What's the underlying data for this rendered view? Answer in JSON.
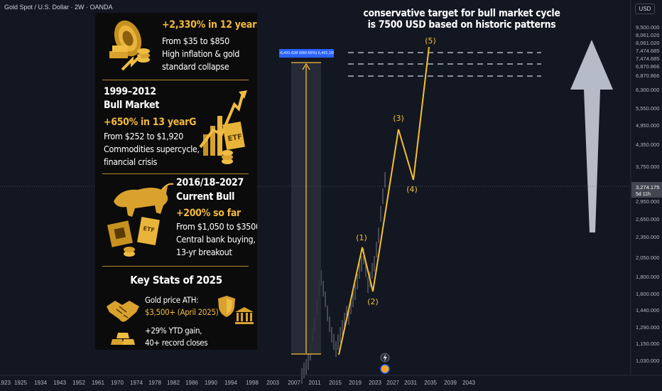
{
  "header": {
    "symbol_title": "Gold Spot / U.S. Dollar · 2W · OANDA",
    "currency_button": "USD"
  },
  "annotation": {
    "line1": "conservative target for bull market cycle",
    "line2": "is 7500 USD based on historic patterns"
  },
  "measure_label": "-6,431.638 (680.55%) 6,431,165.0",
  "infographic": {
    "s1": {
      "line1": "+2,330% in 12 years",
      "line2": "From $35 to $850",
      "line3": "High inflation & gold",
      "line4": "standard collapse"
    },
    "s2": {
      "title1": "1999–2012",
      "title2": "Bull Market",
      "stat": "+650% in 13 yearG",
      "line1": "From $252 to $1,920",
      "line2": "Commodities supercycle,",
      "line3": "financial crisis"
    },
    "s3": {
      "title1": "2016/18–2027",
      "title2": "Current Bull",
      "stat": "+200% so far",
      "line1": "From $1,050 to $3500+",
      "line2": "Central bank buying,",
      "line3": "13-yr breakout"
    },
    "s4": {
      "title": "Key Stats of 2025",
      "line1": "Gold price ATH:",
      "line2": "$3,500+ (April 2025)",
      "line3": "+29% YTD gain,",
      "line4": "40+ record closes"
    }
  },
  "colors": {
    "background": "#131722",
    "wave": "#f5c030",
    "price_candles": "#787b86",
    "arrow": "#c4cbd6",
    "price_tag": "#434651",
    "measure_tag": "#2962ff",
    "panel_gold": "#f2b93b"
  },
  "chart_data": {
    "type": "line",
    "title": "Gold Spot / U.S. Dollar · 2W · OANDA",
    "x_axis": {
      "ticks": [
        "1923",
        "1925",
        "1934",
        "1943",
        "1952",
        "1961",
        "1970",
        "1974",
        "1978",
        "1982",
        "1986",
        "1990",
        "1994",
        "1998",
        "2003",
        "2007",
        "2011",
        "2015",
        "2019",
        "2023",
        "2027",
        "2031",
        "2035",
        "2039",
        "2043"
      ]
    },
    "y_axis": {
      "scale": "log",
      "ticks": [
        "9,500.000",
        "8,061.020",
        "8,061.020",
        "7,474.685",
        "7,474.685",
        "6,870.866",
        "6,870.866",
        "6,300.000",
        "5,550.000",
        "4,950.000",
        "4,350.000",
        "3,750.000",
        "3,250.000",
        "2,950.000",
        "2,650.000",
        "2,350.000",
        "2,050.000",
        "1,800.000",
        "1,600.000",
        "1,440.000",
        "1,290.000",
        "1,150.000",
        "1,030.000"
      ],
      "current_price_label": "3,274.175",
      "current_price_sublabel": "5d 11h"
    },
    "target_levels": [
      8061.02,
      7474.685,
      6870.866
    ],
    "series": [
      {
        "type": "wave",
        "points": [
          {
            "x": 2015.5,
            "y": 1100
          },
          {
            "x": 2021.8,
            "y": 2130,
            "label": "(1)"
          },
          {
            "x": 2023.6,
            "y": 1630,
            "label": "(2)"
          },
          {
            "x": 2028.2,
            "y": 4900,
            "label": "(3)"
          },
          {
            "x": 2031.8,
            "y": 3420,
            "label": "(4)"
          },
          {
            "x": 2035.8,
            "y": 7300,
            "label": "(5)"
          }
        ]
      }
    ]
  }
}
